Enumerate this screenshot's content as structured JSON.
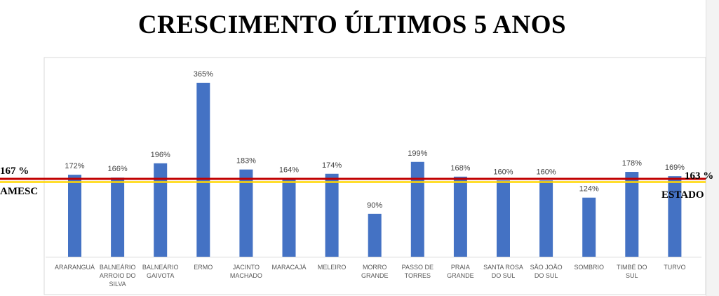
{
  "chart_data": {
    "type": "bar",
    "title": "CRESCIMENTO ÚLTIMOS 5 ANOS",
    "categories": [
      [
        "ARARANGUÁ"
      ],
      [
        "BALNEÁRIO",
        "ARROIO DO",
        "SILVA"
      ],
      [
        "BALNEÁRIO",
        "GAIVOTA"
      ],
      [
        "ERMO"
      ],
      [
        "JACINTO",
        "MACHADO"
      ],
      [
        "MARACAJÁ"
      ],
      [
        "MELEIRO"
      ],
      [
        "MORRO",
        "GRANDE"
      ],
      [
        "PASSO DE",
        "TORRES"
      ],
      [
        "PRAIA",
        "GRANDE"
      ],
      [
        "SANTA ROSA",
        "DO SUL"
      ],
      [
        "SÃO JOÃO",
        "DO SUL"
      ],
      [
        "SOMBRIO"
      ],
      [
        "TIMBÉ DO",
        "SUL"
      ],
      [
        "TURVO"
      ]
    ],
    "values": [
      172,
      166,
      196,
      365,
      183,
      164,
      174,
      90,
      199,
      168,
      160,
      160,
      124,
      178,
      169
    ],
    "value_labels": [
      "172%",
      "166%",
      "196%",
      "365%",
      "183%",
      "164%",
      "174%",
      "90%",
      "199%",
      "168%",
      "160%",
      "160%",
      "124%",
      "178%",
      "169%"
    ],
    "ylim": [
      0,
      400
    ],
    "grid": false,
    "bar_color": "#4472c4",
    "reference_lines": [
      {
        "value": 167,
        "label": "167 %",
        "name": "AMESC",
        "color": "#c00000"
      },
      {
        "value": 163,
        "label": "163 %",
        "name": "ESTADO",
        "color": "#ffd700"
      }
    ]
  }
}
